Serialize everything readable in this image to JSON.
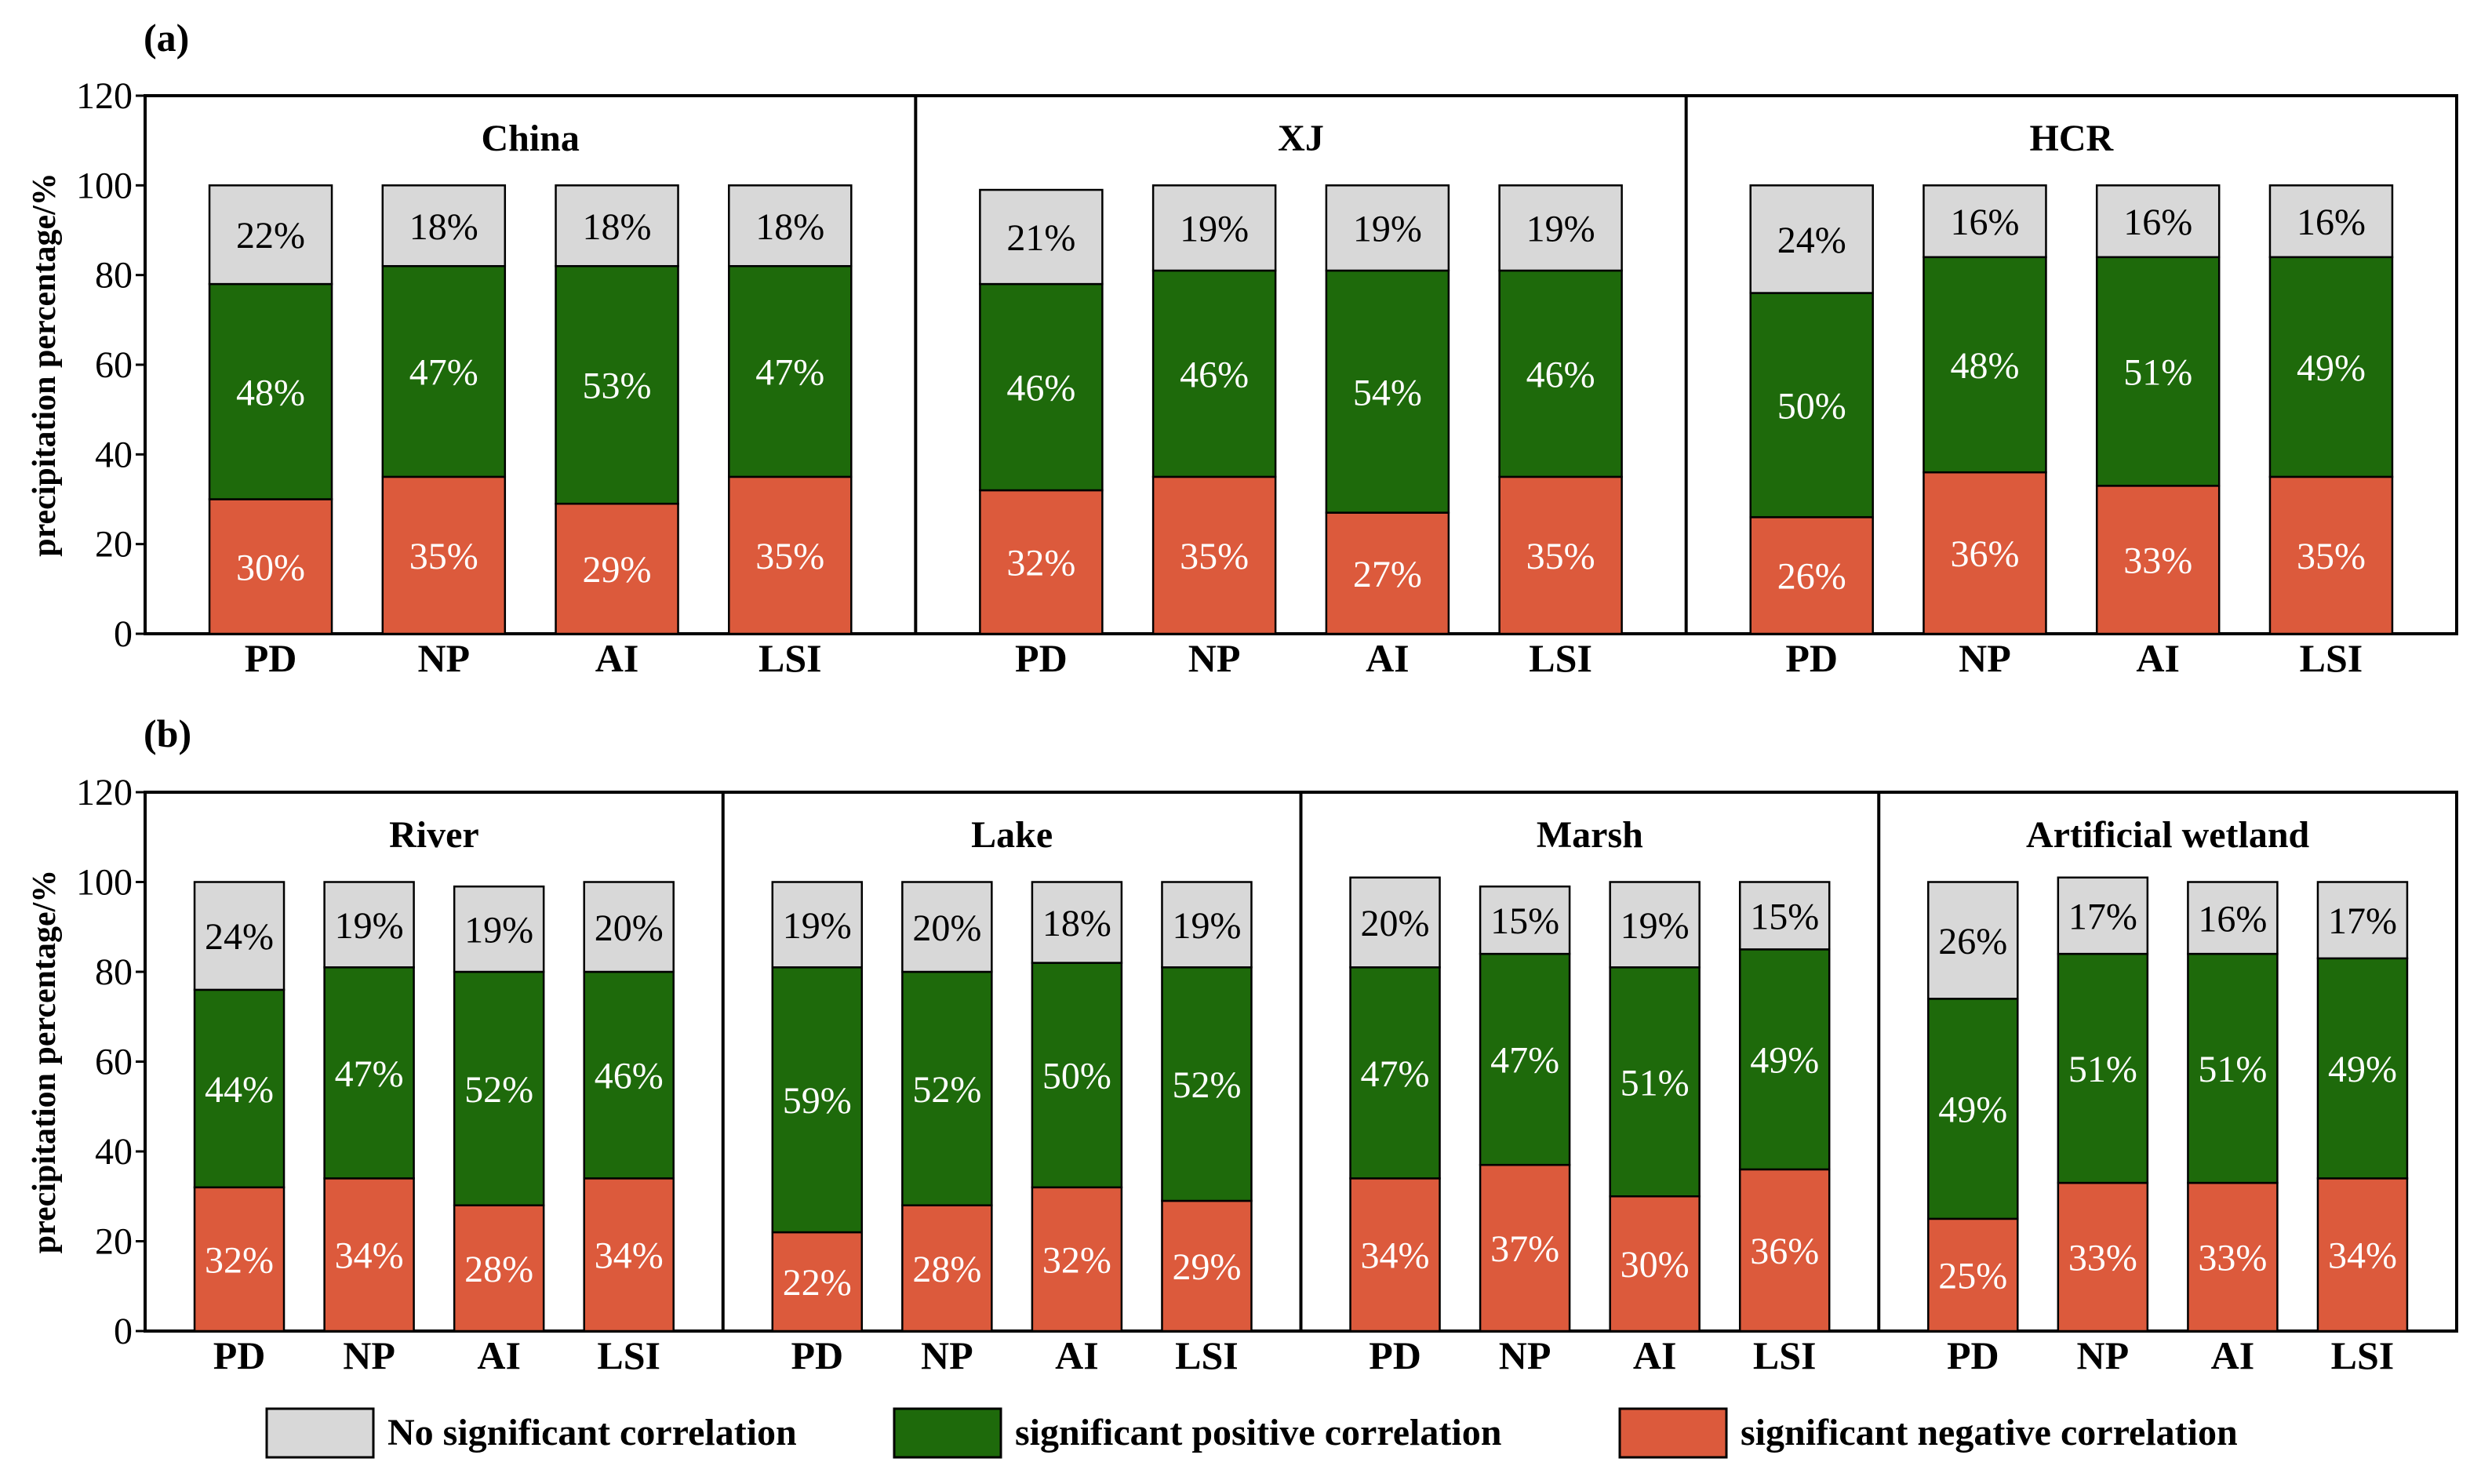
{
  "colors": {
    "none": "#d8d8d8",
    "positive": "#1e6a0b",
    "negative": "#dc5a3c",
    "none_text": "#000000",
    "positive_text": "#ffffff",
    "negative_text": "#ffffff"
  },
  "legend": [
    {
      "key": "none",
      "label": "No significant correlation"
    },
    {
      "key": "positive",
      "label": "significant positive correlation"
    },
    {
      "key": "negative",
      "label": "significant negative correlation"
    }
  ],
  "chart_data": [
    {
      "type": "bar",
      "stacked": true,
      "panel": "(a)",
      "ylabel": "precipitation percentage/%",
      "ylim": [
        0,
        120
      ],
      "yticks": [
        0,
        20,
        40,
        60,
        80,
        100,
        120
      ],
      "categories": [
        "PD",
        "NP",
        "AI",
        "LSI"
      ],
      "groups": [
        {
          "title": "China",
          "negative": [
            30,
            35,
            29,
            35
          ],
          "positive": [
            48,
            47,
            53,
            47
          ],
          "none": [
            22,
            18,
            18,
            18
          ]
        },
        {
          "title": "XJ",
          "negative": [
            32,
            35,
            27,
            35
          ],
          "positive": [
            46,
            46,
            54,
            46
          ],
          "none": [
            21,
            19,
            19,
            19
          ]
        },
        {
          "title": "HCR",
          "negative": [
            26,
            36,
            33,
            35
          ],
          "positive": [
            50,
            48,
            51,
            49
          ],
          "none": [
            24,
            16,
            16,
            16
          ]
        }
      ]
    },
    {
      "type": "bar",
      "stacked": true,
      "panel": "(b)",
      "ylabel": "precipitation percentage/%",
      "ylim": [
        0,
        120
      ],
      "yticks": [
        0,
        20,
        40,
        60,
        80,
        100,
        120
      ],
      "categories": [
        "PD",
        "NP",
        "AI",
        "LSI"
      ],
      "groups": [
        {
          "title": "River",
          "negative": [
            32,
            34,
            28,
            34
          ],
          "positive": [
            44,
            47,
            52,
            46
          ],
          "none": [
            24,
            19,
            19,
            20
          ]
        },
        {
          "title": "Lake",
          "negative": [
            22,
            28,
            32,
            29
          ],
          "positive": [
            59,
            52,
            50,
            52
          ],
          "none": [
            19,
            20,
            18,
            19
          ]
        },
        {
          "title": "Marsh",
          "negative": [
            34,
            37,
            30,
            36
          ],
          "positive": [
            47,
            47,
            51,
            49
          ],
          "none": [
            20,
            15,
            19,
            15
          ]
        },
        {
          "title": "Artificial wetland",
          "negative": [
            25,
            33,
            33,
            34
          ],
          "positive": [
            49,
            51,
            51,
            49
          ],
          "none": [
            26,
            17,
            16,
            17
          ]
        }
      ]
    }
  ]
}
